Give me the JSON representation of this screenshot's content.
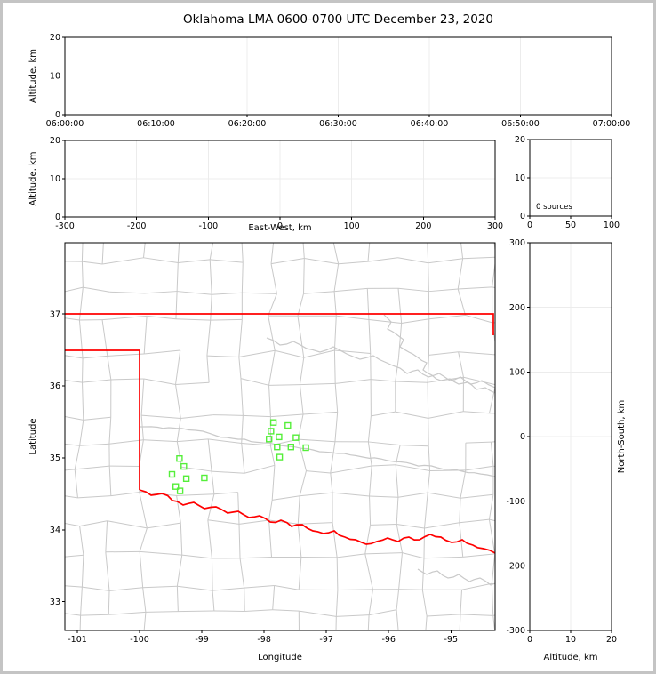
{
  "title": "Oklahoma LMA 0600-0700 UTC December 23, 2020",
  "colors": {
    "background": "#ffffff",
    "frame": "#000000",
    "grid": "#ececec",
    "county": "#c9c9c9",
    "state_border": "#ff0000",
    "source_marker": "#55ee3a",
    "outer_border": "#c4c4c4",
    "text": "#000000"
  },
  "chart_data": [
    {
      "id": "time_altitude",
      "type": "scatter",
      "ylabel": "Altitude, km",
      "x_tick_labels": [
        "06:00:00",
        "06:10:00",
        "06:20:00",
        "06:30:00",
        "06:40:00",
        "06:50:00",
        "07:00:00"
      ],
      "y_tick_labels": [
        "0",
        "10",
        "20"
      ],
      "xlim_note": "0600 to 0700 UTC",
      "ylim": [
        0,
        20
      ],
      "points": []
    },
    {
      "id": "eastwest_altitude",
      "type": "scatter",
      "xlabel": "East-West, km",
      "ylabel": "Altitude, km",
      "x_tick_labels": [
        "-300",
        "-200",
        "-100",
        "0",
        "100",
        "200",
        "300"
      ],
      "y_tick_labels": [
        "0",
        "10",
        "20"
      ],
      "xlim": [
        -300,
        300
      ],
      "ylim": [
        0,
        20
      ],
      "points": []
    },
    {
      "id": "altitude_histogram",
      "type": "line",
      "annotation": "0 sources",
      "x_tick_labels": [
        "0",
        "50",
        "100"
      ],
      "y_tick_labels": [
        "0",
        "10",
        "20"
      ],
      "xlim": [
        0,
        100
      ],
      "ylim": [
        0,
        20
      ],
      "points": []
    },
    {
      "id": "plan_view_map",
      "type": "scatter",
      "xlabel": "Longitude",
      "ylabel": "Latitude",
      "x_tick_labels": [
        "-101",
        "-100",
        "-99",
        "-98",
        "-97",
        "-96",
        "-95"
      ],
      "x_ticks": [
        -101,
        -100,
        -99,
        -98,
        -97,
        -96,
        -95
      ],
      "y_tick_labels": [
        "33",
        "34",
        "35",
        "36",
        "37"
      ],
      "y_ticks": [
        33,
        34,
        35,
        36,
        37
      ],
      "xlim": [
        -101.2,
        -94.29
      ],
      "ylim": [
        32.6,
        37.99
      ],
      "grid": false,
      "sources_lonlat": [
        [
          -99.36,
          34.99
        ],
        [
          -99.29,
          34.88
        ],
        [
          -99.48,
          34.77
        ],
        [
          -99.25,
          34.71
        ],
        [
          -98.96,
          34.72
        ],
        [
          -99.42,
          34.6
        ],
        [
          -99.35,
          34.54
        ],
        [
          -97.85,
          35.49
        ],
        [
          -97.62,
          35.45
        ],
        [
          -97.89,
          35.37
        ],
        [
          -97.76,
          35.29
        ],
        [
          -97.92,
          35.26
        ],
        [
          -97.49,
          35.28
        ],
        [
          -97.79,
          35.15
        ],
        [
          -97.57,
          35.15
        ],
        [
          -97.33,
          35.14
        ],
        [
          -97.75,
          35.01
        ]
      ]
    },
    {
      "id": "northsouth_altitude",
      "type": "scatter",
      "xlabel": "Altitude, km",
      "ylabel_right": "North-South, km",
      "x_tick_labels": [
        "0",
        "10",
        "20"
      ],
      "y_tick_labels": [
        "-300",
        "-200",
        "-100",
        "0",
        "100",
        "200",
        "300"
      ],
      "xlim": [
        0,
        20
      ],
      "ylim": [
        -300,
        300
      ],
      "points": []
    }
  ]
}
